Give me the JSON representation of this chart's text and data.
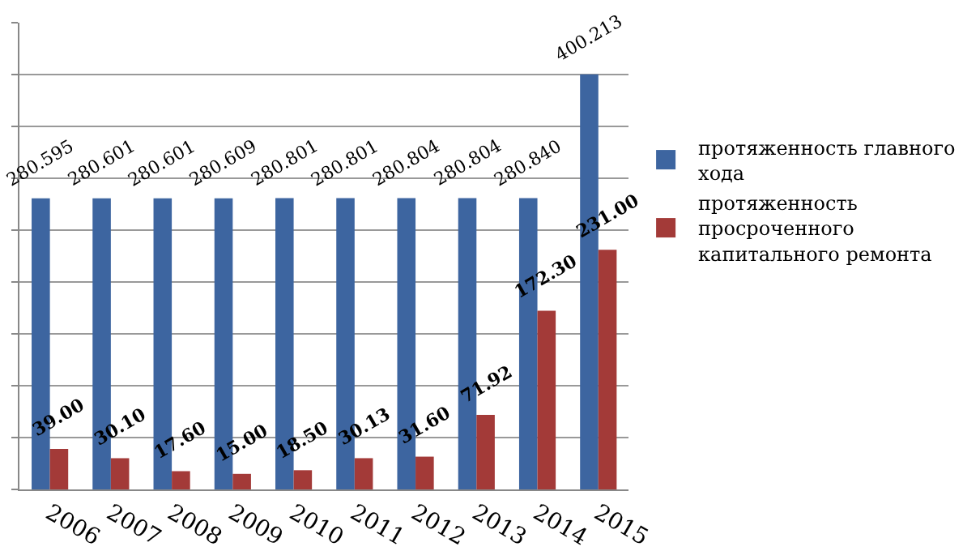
{
  "chart_data": {
    "type": "bar",
    "categories": [
      "2006",
      "2007",
      "2008",
      "2009",
      "2010",
      "2011",
      "2012",
      "2013",
      "2014",
      "2015"
    ],
    "series": [
      {
        "name": "протяженность главного хода",
        "color": "#3d65a0",
        "values": [
          280.595,
          280.601,
          280.601,
          280.609,
          280.801,
          280.801,
          280.804,
          280.804,
          280.84,
          400.213
        ],
        "value_labels": [
          "280.595",
          "280.601",
          "280.601",
          "280.609",
          "280.801",
          "280.801",
          "280.804",
          "280.804",
          "280.840",
          "400.213"
        ]
      },
      {
        "name": "протяженность просроченного капитального ремонта",
        "color": "#a33a38",
        "values": [
          39,
          30.1,
          17.6,
          15,
          18.5,
          30.13,
          31.6,
          71.92,
          172.3,
          231
        ],
        "value_labels": [
          "39.00",
          "30.10",
          "17.60",
          "15.00",
          "18.50",
          "30.13",
          "31.60",
          "71.92",
          "172.30",
          "231.00"
        ]
      }
    ],
    "ylim": [
      0,
      450
    ],
    "yticks": [
      {
        "value": 0,
        "label": null
      },
      {
        "value": 50,
        "label": null
      },
      {
        "value": 100,
        "label": null
      },
      {
        "value": 150,
        "label": null
      },
      {
        "value": 200,
        "label": null
      },
      {
        "value": 250,
        "label": null
      },
      {
        "value": 300,
        "label": null
      },
      {
        "value": 350,
        "label": null
      },
      {
        "value": 400,
        "label": null
      },
      {
        "value": 450,
        "label": null
      }
    ],
    "grid": "y",
    "legend": "right",
    "tick_labels": "x"
  }
}
